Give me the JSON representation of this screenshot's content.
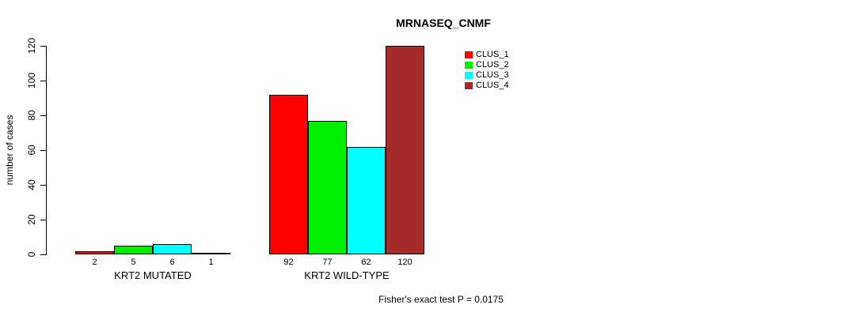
{
  "title": "MRNASEQ_CNMF",
  "y_axis_label": "number of cases",
  "footer": "Fisher's exact test P = 0.0175",
  "chart_data": {
    "type": "bar",
    "title": "MRNASEQ_CNMF",
    "ylabel": "number of cases",
    "xlabel": "",
    "categories": [
      "KRT2 MUTATED",
      "KRT2 WILD-TYPE"
    ],
    "series": [
      {
        "name": "CLUS_1",
        "color": "#ff0000",
        "values": [
          2,
          92
        ]
      },
      {
        "name": "CLUS_2",
        "color": "#00ee00",
        "values": [
          5,
          77
        ]
      },
      {
        "name": "CLUS_3",
        "color": "#00ffff",
        "values": [
          6,
          62
        ]
      },
      {
        "name": "CLUS_4",
        "color": "#a52a2a",
        "values": [
          1,
          120
        ]
      }
    ],
    "y_ticks": [
      0,
      20,
      40,
      60,
      80,
      100,
      120
    ],
    "ylim": [
      0,
      120
    ],
    "grid": false,
    "show_bar_value_labels": true,
    "legend_position": "top-right",
    "annotation": "Fisher's exact test P = 0.0175"
  }
}
